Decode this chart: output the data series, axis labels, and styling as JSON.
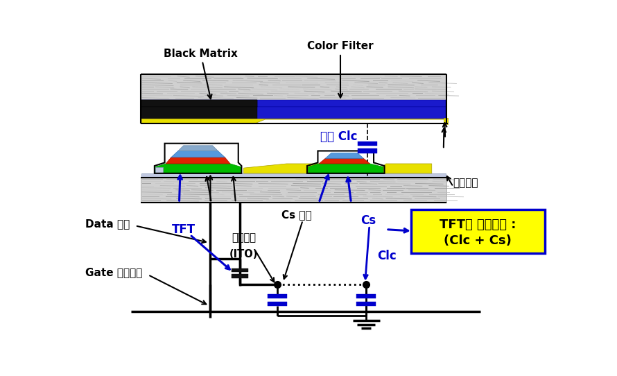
{
  "bg": "#ffffff",
  "labels": {
    "black_matrix": "Black Matrix",
    "color_filter": "Color Filter",
    "liquid_crystal": "액정 Clc",
    "common_electrode": "공통전극",
    "data_line": "Data 배선",
    "tft": "TFT",
    "pixel_elec1": "화소전극",
    "pixel_elec2": "(ITO)",
    "cs_electrode": "Cs 전극",
    "cs_cap": "Cs",
    "clc_cap": "Clc",
    "gate_line": "Gate 신호배선",
    "box_line1": "TFT의 부하용량 :",
    "box_line2": "(Clc + Cs)"
  }
}
